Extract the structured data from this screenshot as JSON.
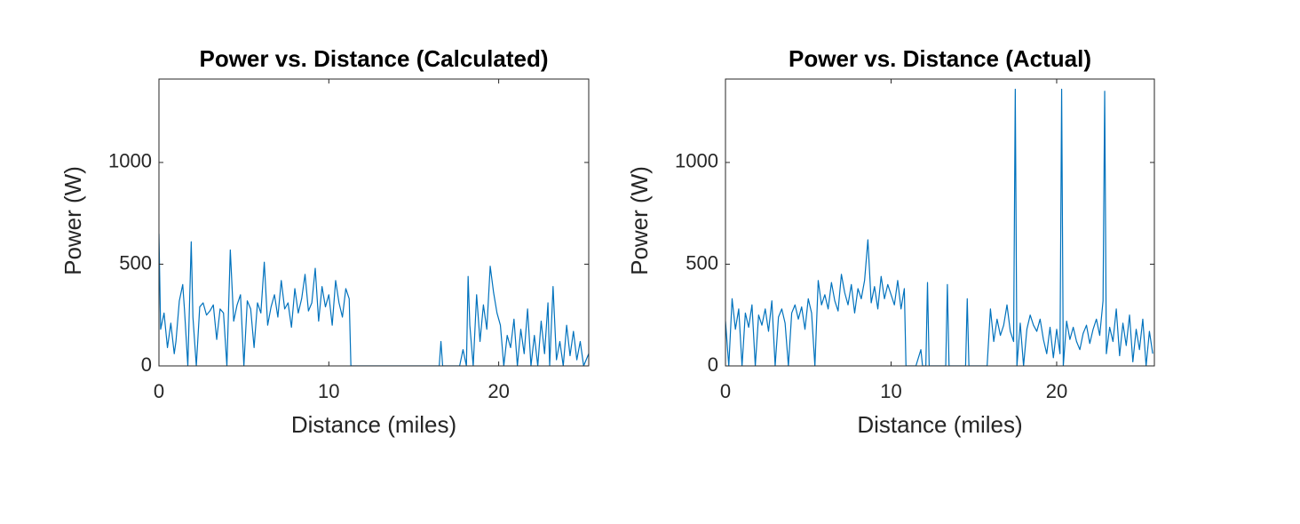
{
  "chart_data": [
    {
      "type": "line",
      "title": "Power vs. Distance (Calculated)",
      "x_label": "Distance (miles)",
      "y_label": "Power (W)",
      "xlim": [
        0,
        25.3
      ],
      "ylim": [
        0,
        1410
      ],
      "xticks": [
        0,
        10,
        20
      ],
      "yticks": [
        0,
        500,
        1000
      ],
      "grid": false,
      "x": [
        0,
        0.1,
        0.3,
        0.5,
        0.7,
        0.9,
        1.0,
        1.2,
        1.4,
        1.5,
        1.7,
        1.9,
        2.0,
        2.2,
        2.4,
        2.6,
        2.8,
        3.0,
        3.2,
        3.4,
        3.6,
        3.8,
        4.0,
        4.2,
        4.4,
        4.6,
        4.8,
        5.0,
        5.2,
        5.4,
        5.6,
        5.8,
        6.0,
        6.2,
        6.4,
        6.6,
        6.8,
        7.0,
        7.2,
        7.4,
        7.6,
        7.8,
        8.0,
        8.2,
        8.4,
        8.6,
        8.8,
        9.0,
        9.2,
        9.4,
        9.6,
        9.8,
        10.0,
        10.2,
        10.4,
        10.6,
        10.8,
        11.0,
        11.2,
        11.3,
        12,
        14,
        16,
        16.5,
        16.6,
        16.7,
        17,
        17.7,
        17.9,
        18.1,
        18.2,
        18.3,
        18.5,
        18.7,
        18.9,
        19.1,
        19.3,
        19.5,
        19.7,
        19.9,
        20.1,
        20.3,
        20.5,
        20.7,
        20.9,
        21.1,
        21.3,
        21.5,
        21.7,
        21.9,
        22.1,
        22.3,
        22.5,
        22.7,
        22.9,
        23.0,
        23.2,
        23.4,
        23.6,
        23.8,
        24.0,
        24.2,
        24.4,
        24.6,
        24.8,
        25.0,
        25.3
      ],
      "series": [
        {
          "color": "#0072bd",
          "values": [
            650,
            180,
            260,
            90,
            210,
            60,
            120,
            320,
            400,
            280,
            0,
            610,
            240,
            0,
            290,
            310,
            250,
            270,
            300,
            130,
            280,
            260,
            0,
            570,
            220,
            300,
            350,
            0,
            320,
            280,
            90,
            310,
            260,
            510,
            200,
            290,
            350,
            240,
            420,
            280,
            310,
            190,
            380,
            260,
            330,
            450,
            270,
            310,
            480,
            220,
            390,
            290,
            350,
            200,
            420,
            310,
            240,
            380,
            330,
            0,
            0,
            0,
            0,
            0,
            120,
            0,
            0,
            0,
            80,
            0,
            440,
            200,
            0,
            350,
            120,
            300,
            180,
            490,
            360,
            260,
            200,
            0,
            150,
            90,
            230,
            0,
            180,
            60,
            280,
            0,
            150,
            0,
            220,
            60,
            310,
            0,
            390,
            30,
            120,
            0,
            200,
            50,
            170,
            30,
            120,
            0,
            60
          ]
        }
      ]
    },
    {
      "type": "line",
      "title": "Power vs. Distance (Actual)",
      "x_label": "Distance (miles)",
      "y_label": "Power (W)",
      "xlim": [
        0,
        25.9
      ],
      "ylim": [
        0,
        1410
      ],
      "xticks": [
        0,
        10,
        20
      ],
      "yticks": [
        0,
        500,
        1000
      ],
      "grid": false,
      "x": [
        0,
        0.2,
        0.4,
        0.6,
        0.8,
        1.0,
        1.2,
        1.4,
        1.6,
        1.8,
        2.0,
        2.2,
        2.4,
        2.6,
        2.8,
        3.0,
        3.2,
        3.4,
        3.6,
        3.8,
        4.0,
        4.2,
        4.4,
        4.6,
        4.8,
        5.0,
        5.2,
        5.4,
        5.6,
        5.8,
        6.0,
        6.2,
        6.4,
        6.6,
        6.8,
        7.0,
        7.2,
        7.4,
        7.6,
        7.8,
        8.0,
        8.2,
        8.4,
        8.6,
        8.8,
        9.0,
        9.2,
        9.4,
        9.6,
        9.8,
        10.0,
        10.2,
        10.4,
        10.6,
        10.8,
        10.9,
        11.5,
        11.8,
        11.9,
        12.1,
        12.2,
        12.3,
        13.3,
        13.4,
        13.5,
        14.5,
        14.6,
        14.7,
        15.8,
        16.0,
        16.2,
        16.4,
        16.6,
        16.8,
        17.0,
        17.2,
        17.4,
        17.5,
        17.6,
        17.8,
        18.0,
        18.2,
        18.4,
        18.6,
        18.8,
        19.0,
        19.2,
        19.4,
        19.6,
        19.8,
        20.0,
        20.2,
        20.3,
        20.4,
        20.6,
        20.8,
        21.0,
        21.2,
        21.4,
        21.6,
        21.8,
        22.0,
        22.2,
        22.4,
        22.6,
        22.8,
        22.9,
        23.0,
        23.2,
        23.4,
        23.6,
        23.8,
        24.0,
        24.2,
        24.4,
        24.6,
        24.8,
        25.0,
        25.2,
        25.4,
        25.6,
        25.8
      ],
      "series": [
        {
          "color": "#0072bd",
          "values": [
            220,
            0,
            330,
            180,
            280,
            0,
            260,
            190,
            300,
            0,
            250,
            200,
            280,
            170,
            320,
            0,
            240,
            280,
            210,
            0,
            260,
            300,
            230,
            290,
            180,
            330,
            260,
            0,
            420,
            300,
            350,
            280,
            410,
            320,
            270,
            450,
            360,
            300,
            400,
            260,
            380,
            330,
            420,
            620,
            310,
            390,
            280,
            440,
            330,
            400,
            350,
            300,
            420,
            280,
            380,
            0,
            0,
            80,
            0,
            0,
            410,
            0,
            0,
            400,
            0,
            0,
            330,
            0,
            0,
            280,
            120,
            230,
            150,
            200,
            300,
            170,
            120,
            1360,
            0,
            210,
            0,
            180,
            250,
            200,
            170,
            230,
            130,
            60,
            190,
            40,
            180,
            60,
            1360,
            0,
            220,
            130,
            190,
            120,
            80,
            160,
            200,
            110,
            180,
            230,
            150,
            320,
            1350,
            60,
            190,
            120,
            280,
            50,
            210,
            100,
            250,
            20,
            180,
            80,
            230,
            0,
            170,
            60
          ]
        }
      ]
    }
  ]
}
